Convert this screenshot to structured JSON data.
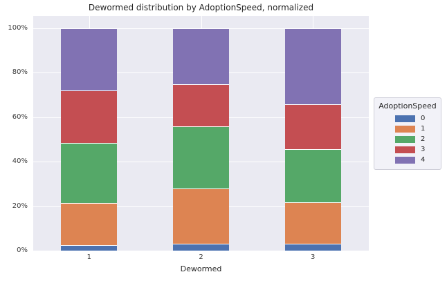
{
  "chart_data": {
    "type": "bar",
    "stacked": true,
    "normalized": true,
    "title": "Dewormed distribution by AdoptionSpeed, normalized",
    "xlabel": "Dewormed",
    "ylabel": "",
    "categories": [
      "1",
      "2",
      "3"
    ],
    "series": [
      {
        "name": "0",
        "color": "#4c72b0",
        "values": [
          2.5,
          3.1,
          3.1
        ]
      },
      {
        "name": "1",
        "color": "#dd8452",
        "values": [
          19.0,
          24.8,
          18.5
        ]
      },
      {
        "name": "2",
        "color": "#55a868",
        "values": [
          27.0,
          27.9,
          23.9
        ]
      },
      {
        "name": "3",
        "color": "#c44e52",
        "values": [
          23.5,
          19.2,
          20.2
        ]
      },
      {
        "name": "4",
        "color": "#8172b3",
        "values": [
          28.0,
          25.0,
          34.3
        ]
      }
    ],
    "yticks": [
      {
        "label": "0%",
        "value": 0
      },
      {
        "label": "20%",
        "value": 20
      },
      {
        "label": "40%",
        "value": 40
      },
      {
        "label": "60%",
        "value": 60
      },
      {
        "label": "80%",
        "value": 80
      },
      {
        "label": "100%",
        "value": 100
      }
    ],
    "ylim": [
      0,
      105.6
    ],
    "grid": true,
    "legend": {
      "title": "AdoptionSpeed",
      "position": "right-outside"
    },
    "colors": {
      "plot_bg": "#eaeaf2",
      "grid": "#ffffff",
      "text": "#262626"
    }
  }
}
